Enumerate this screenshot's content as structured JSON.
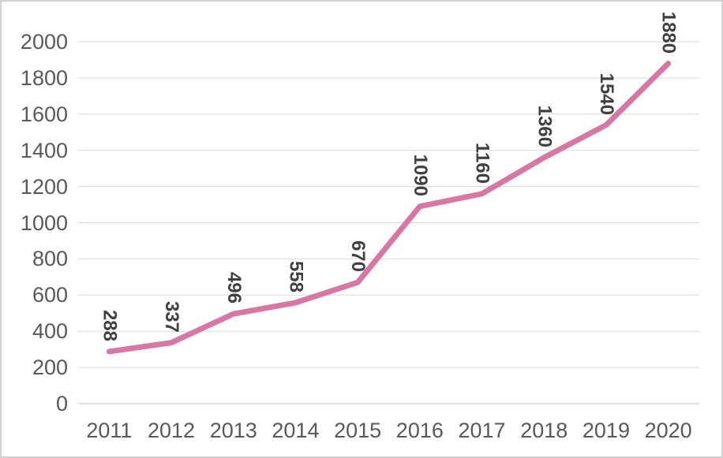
{
  "chart_data": {
    "type": "line",
    "title": "",
    "categories": [
      "2011",
      "2012",
      "2013",
      "2014",
      "2015",
      "2016",
      "2017",
      "2018",
      "2019",
      "2020"
    ],
    "series": [
      {
        "name": "",
        "values": [
          288,
          337,
          496,
          558,
          670,
          1090,
          1160,
          1360,
          1540,
          1880
        ],
        "data_labels": [
          "288",
          "337",
          "496",
          "558",
          "670",
          "1090",
          "1160",
          "1360",
          "1540",
          "1880"
        ],
        "color": "#d877a4"
      }
    ],
    "xlabel": "",
    "ylabel": "",
    "ylim": [
      0,
      2000
    ],
    "y_tick_step": 200,
    "y_tick_labels": [
      "0",
      "200",
      "400",
      "600",
      "800",
      "1000",
      "1200",
      "1400",
      "1600",
      "1800",
      "2000"
    ],
    "grid": true,
    "legend": false,
    "data_label_rotation_deg": 90,
    "colors": {
      "line": "#d877a4",
      "gridline": "#d9d9d9",
      "axis_line": "#c6c6c6",
      "axis_text": "#595959",
      "data_label_text": "#404040",
      "frame_border": "#d2d2d2",
      "background": "#ffffff"
    }
  }
}
